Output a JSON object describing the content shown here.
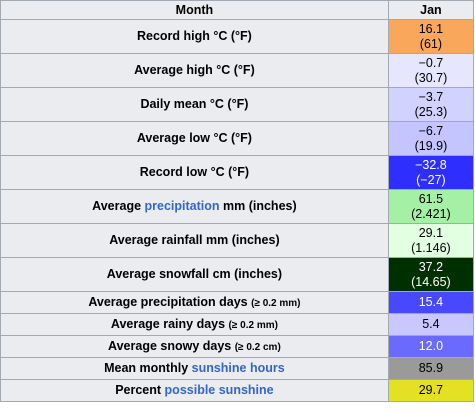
{
  "table": {
    "header": [
      "Month",
      "Jan"
    ],
    "rows": [
      {
        "label": [
          {
            "text": "Record high °C (°F)"
          }
        ],
        "value": "16.1",
        "value_paren": "(61)",
        "color": "#f8a75b",
        "text_color": "#000000"
      },
      {
        "label": [
          {
            "text": "Average high °C (°F)"
          }
        ],
        "value": "−0.7",
        "value_paren": "(30.7)",
        "color": "#e6e6ff",
        "text_color": "#000000"
      },
      {
        "label": [
          {
            "text": "Daily mean °C (°F)"
          }
        ],
        "value": "−3.7",
        "value_paren": "(25.3)",
        "color": "#d2d2ff",
        "text_color": "#000000"
      },
      {
        "label": [
          {
            "text": "Average low °C (°F)"
          }
        ],
        "value": "−6.7",
        "value_paren": "(19.9)",
        "color": "#c4c4ff",
        "text_color": "#000000"
      },
      {
        "label": [
          {
            "text": "Record low °C (°F)"
          }
        ],
        "value": "−32.8",
        "value_paren": "(−27)",
        "color": "#2e2eff",
        "text_color": "#ffffff"
      },
      {
        "label": [
          {
            "text": "Average "
          },
          {
            "text": "precipitation",
            "kind": "link"
          },
          {
            "text": " mm (inches)"
          }
        ],
        "value": "61.5",
        "value_paren": "(2.421)",
        "color": "#a4f0a4",
        "text_color": "#000000"
      },
      {
        "label": [
          {
            "text": "Average rainfall mm (inches)"
          }
        ],
        "value": "29.1",
        "value_paren": "(1.146)",
        "color": "#e2ffe2",
        "text_color": "#000000"
      },
      {
        "label": [
          {
            "text": "Average snowfall cm (inches)"
          }
        ],
        "value": "37.2",
        "value_paren": "(14.65)",
        "color": "#003000",
        "text_color": "#ffffff"
      },
      {
        "label": [
          {
            "text": "Average precipitation days "
          },
          {
            "text": "(≥ 0.2 mm)",
            "kind": "small"
          }
        ],
        "value": "15.4",
        "color": "#4848ff",
        "text_color": "#ffffff"
      },
      {
        "label": [
          {
            "text": "Average rainy days "
          },
          {
            "text": "(≥ 0.2 mm)",
            "kind": "small"
          }
        ],
        "value": "5.4",
        "color": "#c8c8ff",
        "text_color": "#000000"
      },
      {
        "label": [
          {
            "text": "Average snowy days "
          },
          {
            "text": "(≥ 0.2 cm)",
            "kind": "small"
          }
        ],
        "value": "12.0",
        "color": "#6a6aff",
        "text_color": "#ffffff"
      },
      {
        "label": [
          {
            "text": "Mean monthly "
          },
          {
            "text": "sunshine hours",
            "kind": "link"
          }
        ],
        "value": "85.9",
        "color": "#9a9a9a",
        "text_color": "#000000"
      },
      {
        "label": [
          {
            "text": "Percent "
          },
          {
            "text": "possible sunshine",
            "kind": "link"
          }
        ],
        "value": "29.7",
        "color": "#e4e024",
        "text_color": "#000000"
      }
    ]
  }
}
